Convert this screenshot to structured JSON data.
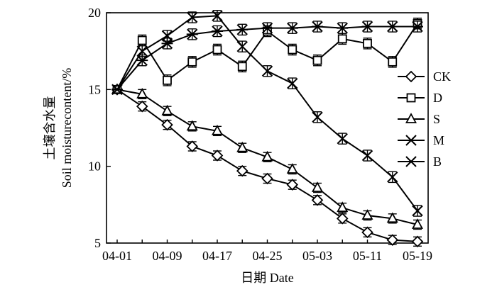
{
  "chart_data": {
    "type": "line",
    "xlabel": "日期 Date",
    "ylabel_cn": "土壤含水量",
    "ylabel_en": "Soil moisturecontent/%",
    "x_tick_labels": [
      "04-01",
      "04-09",
      "04-17",
      "04-25",
      "05-03",
      "05-11",
      "05-19"
    ],
    "x": [
      "04-01",
      "04-05",
      "04-09",
      "04-13",
      "04-17",
      "04-21",
      "04-25",
      "04-29",
      "05-03",
      "05-07",
      "05-11",
      "05-15",
      "05-19"
    ],
    "ylim": [
      5,
      20
    ],
    "yticks": [
      "5",
      "10",
      "15",
      "20"
    ],
    "legend_position": "right",
    "series": [
      {
        "name": "CK",
        "marker": "diamond",
        "values": [
          15.0,
          13.9,
          12.7,
          11.3,
          10.7,
          9.7,
          9.2,
          8.8,
          7.8,
          6.6,
          5.7,
          5.2,
          5.1
        ],
        "error": 0.3
      },
      {
        "name": "D",
        "marker": "square",
        "values": [
          15.0,
          18.2,
          15.6,
          16.8,
          17.6,
          16.5,
          18.8,
          17.6,
          16.9,
          18.3,
          18.0,
          16.8,
          19.3
        ],
        "error": 0.35
      },
      {
        "name": "S",
        "marker": "triangle",
        "values": [
          15.0,
          14.7,
          13.6,
          12.6,
          12.3,
          11.2,
          10.6,
          9.8,
          8.6,
          7.3,
          6.8,
          6.6,
          6.2
        ],
        "error": 0.3
      },
      {
        "name": "M",
        "marker": "x",
        "values": [
          15.0,
          17.5,
          18.5,
          19.7,
          19.8,
          17.8,
          16.2,
          15.4,
          13.2,
          11.8,
          10.7,
          9.3,
          7.1
        ],
        "error": 0.35
      },
      {
        "name": "B",
        "marker": "asterisk",
        "values": [
          15.0,
          16.9,
          18.0,
          18.6,
          18.8,
          18.9,
          19.0,
          19.0,
          19.1,
          19.0,
          19.1,
          19.1,
          19.1
        ],
        "error": 0.35
      }
    ]
  }
}
